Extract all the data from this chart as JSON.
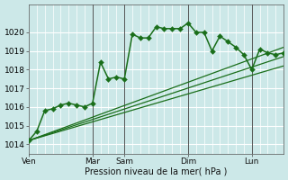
{
  "title": "",
  "xlabel": "Pression niveau de la mer( hPa )",
  "ylabel": "",
  "bg_color": "#cce8e8",
  "grid_color": "#ffffff",
  "line_color": "#1a6e1a",
  "ylim": [
    1013.5,
    1021.5
  ],
  "yticks": [
    1014,
    1015,
    1016,
    1017,
    1018,
    1019,
    1020
  ],
  "xlim": [
    0,
    7
  ],
  "day_labels": [
    "Ven",
    "Mar",
    "Sam",
    "Dim",
    "Lun"
  ],
  "day_positions": [
    0.0,
    2.0,
    3.0,
    5.0,
    7.0
  ],
  "vline_positions": [
    2.0,
    3.0,
    5.0,
    7.0
  ],
  "main_x": [
    0.0,
    0.25,
    0.5,
    0.75,
    1.0,
    1.25,
    1.5,
    1.75,
    2.0,
    2.25,
    2.5,
    2.75,
    3.0,
    3.25,
    3.5,
    3.75,
    4.0,
    4.25,
    4.5,
    4.75,
    5.0,
    5.25,
    5.5,
    5.75,
    6.0,
    6.25,
    6.5,
    6.75,
    7.0,
    7.25,
    7.5,
    7.75,
    8.0
  ],
  "main_y": [
    1014.2,
    1014.7,
    1015.8,
    1015.9,
    1016.1,
    1016.2,
    1016.1,
    1016.0,
    1016.2,
    1018.4,
    1017.5,
    1017.6,
    1017.5,
    1019.9,
    1019.7,
    1019.7,
    1020.3,
    1020.2,
    1020.2,
    1020.2,
    1020.5,
    1020.0,
    1020.0,
    1019.0,
    1019.8,
    1019.5,
    1019.2,
    1018.8,
    1018.0,
    1019.1,
    1018.9,
    1018.8,
    1018.9
  ],
  "trend_lines": [
    {
      "x": [
        0.0,
        8.0
      ],
      "y": [
        1014.2,
        1019.2
      ]
    },
    {
      "x": [
        0.0,
        8.0
      ],
      "y": [
        1014.2,
        1018.7
      ]
    },
    {
      "x": [
        0.0,
        8.0
      ],
      "y": [
        1014.2,
        1018.2
      ]
    }
  ],
  "markersize": 3,
  "linewidth": 1.1,
  "trend_linewidth": 0.9
}
